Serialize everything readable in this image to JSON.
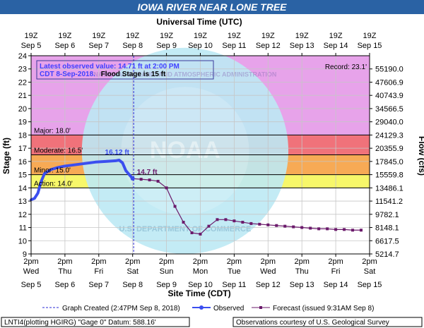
{
  "title": "IOWA RIVER NEAR LONE TREE",
  "colors": {
    "title_bar": "#2a62a4",
    "record": "#e7a3ea",
    "major": "#c987e0",
    "moderate": "#f0727a",
    "minor": "#f7aa55",
    "action": "#f7f76a",
    "observed": "#3b4eef",
    "forecast": "#6b1a6b",
    "noaa_disc": "#bde9f4"
  },
  "top_axis": {
    "title": "Universal Time (UTC)",
    "hours": [
      "19Z",
      "19Z",
      "19Z",
      "19Z",
      "19Z",
      "19Z",
      "19Z",
      "19Z",
      "19Z",
      "19Z",
      "19Z"
    ],
    "dates": [
      "Sep 5",
      "Sep 6",
      "Sep 7",
      "Sep 8",
      "Sep 9",
      "Sep 10",
      "Sep 11",
      "Sep 12",
      "Sep 13",
      "Sep 14",
      "Sep 15"
    ]
  },
  "bottom_axis": {
    "title": "Site Time (CDT)",
    "times": [
      "2pm",
      "2pm",
      "2pm",
      "2pm",
      "2pm",
      "2pm",
      "2pm",
      "2pm",
      "2pm",
      "2pm",
      "2pm"
    ],
    "days": [
      "Wed",
      "Thu",
      "Fri",
      "Sat",
      "Sun",
      "Mon",
      "Tue",
      "Wed",
      "Thu",
      "Fri",
      "Sat"
    ],
    "dates": [
      "Sep 5",
      "Sep 6",
      "Sep 7",
      "Sep 8",
      "Sep 9",
      "Sep 10",
      "Sep 11",
      "Sep 12",
      "Sep 13",
      "Sep 14",
      "Sep 15"
    ]
  },
  "left_axis_title": "Stage (ft)",
  "right_axis_title": "Flow (cfs)",
  "info_box": {
    "line1": "Latest observed value: 14.71 ft at 2:00 PM",
    "line2_blue": "CDT 8-Sep-2018.",
    "line2_black": "Flood Stage is 15 ft"
  },
  "flood_labels": {
    "record": "Record: 23.1'",
    "major": "Major: 18.0'",
    "moderate": "Moderate: 16.5'",
    "minor": "Minor: 15.0'",
    "action": "Action: 14.0'"
  },
  "annotations": {
    "peak": "16.12 ft",
    "latest": "14.7 ft"
  },
  "legend": {
    "graph_created": "Graph Created (2:47PM Sep 8, 2018)",
    "observed": "Observed",
    "forecast": "Forecast (issued 9:31AM Sep 8)"
  },
  "footer": {
    "left": "LNTI4(plotting HGIRG) \"Gage 0\" Datum: 588.16'",
    "right": "Observations courtesy of U.S. Geological Survey"
  },
  "watermark": {
    "noaa": "NOAA",
    "ring_text": "NATIONAL OCEANIC AND ATMOSPHERIC ADMINISTRATION",
    "dept_text": "U.S. DEPARTMENT OF COMMERCE"
  },
  "chart_data": {
    "type": "line",
    "title": "IOWA RIVER NEAR LONE TREE",
    "xlabel": "Site Time (CDT)",
    "ylabel": "Stage (ft)",
    "y2label": "Flow (cfs)",
    "x_unit": "days after Wed Sep 5 2:00 PM CDT",
    "xlim": [
      0,
      10
    ],
    "ylim": [
      9,
      24
    ],
    "y_ticks": [
      9,
      10,
      11,
      12,
      13,
      14,
      15,
      16,
      17,
      18,
      19,
      20,
      21,
      22,
      23,
      24
    ],
    "flow_ticks": [
      {
        "stage": 10,
        "label": "6617.5"
      },
      {
        "stage": 11,
        "label": "8148.1"
      },
      {
        "stage": 12,
        "label": "9782.1"
      },
      {
        "stage": 13,
        "label": "11541.2"
      },
      {
        "stage": 14,
        "label": "13486.1"
      },
      {
        "stage": 15,
        "label": "15559.8"
      },
      {
        "stage": 16,
        "label": "17845.0"
      },
      {
        "stage": 17,
        "label": "20355.9"
      },
      {
        "stage": 18,
        "label": "24129.3"
      },
      {
        "stage": 19,
        "label": "29040.0"
      },
      {
        "stage": 20,
        "label": "34566.5"
      },
      {
        "stage": 21,
        "label": "40743.9"
      },
      {
        "stage": 22,
        "label": "47606.9"
      },
      {
        "stage": 23,
        "label": "55190.0"
      },
      {
        "stage": 9,
        "label": "5214.7"
      }
    ],
    "flood_categories": [
      {
        "name": "Record",
        "stage": 23.1
      },
      {
        "name": "Major",
        "stage": 18.0
      },
      {
        "name": "Moderate",
        "stage": 16.5
      },
      {
        "name": "Minor",
        "stage": 15.0
      },
      {
        "name": "Action",
        "stage": 14.0
      }
    ],
    "graph_created_x": 3.03,
    "series": [
      {
        "name": "Observed",
        "points": [
          [
            0.0,
            13.1
          ],
          [
            0.1,
            13.2
          ],
          [
            0.2,
            13.6
          ],
          [
            0.3,
            14.5
          ],
          [
            0.4,
            15.1
          ],
          [
            0.6,
            15.4
          ],
          [
            0.8,
            15.55
          ],
          [
            1.0,
            15.65
          ],
          [
            1.3,
            15.75
          ],
          [
            1.6,
            15.85
          ],
          [
            1.9,
            15.95
          ],
          [
            2.2,
            16.0
          ],
          [
            2.5,
            16.05
          ],
          [
            2.6,
            16.1
          ],
          [
            2.7,
            15.9
          ],
          [
            2.8,
            15.3
          ],
          [
            2.9,
            15.0
          ],
          [
            3.0,
            14.71
          ]
        ]
      },
      {
        "name": "Forecast",
        "points": [
          [
            3.0,
            14.7
          ],
          [
            3.25,
            14.65
          ],
          [
            3.5,
            14.6
          ],
          [
            3.75,
            14.5
          ],
          [
            4.0,
            14.0
          ],
          [
            4.25,
            12.6
          ],
          [
            4.5,
            11.4
          ],
          [
            4.75,
            10.6
          ],
          [
            5.0,
            10.5
          ],
          [
            5.25,
            11.1
          ],
          [
            5.5,
            11.6
          ],
          [
            5.75,
            11.6
          ],
          [
            6.0,
            11.5
          ],
          [
            6.25,
            11.4
          ],
          [
            6.5,
            11.3
          ],
          [
            6.75,
            11.25
          ],
          [
            7.0,
            11.2
          ],
          [
            7.25,
            11.15
          ],
          [
            7.5,
            11.1
          ],
          [
            7.75,
            11.05
          ],
          [
            8.0,
            11.0
          ],
          [
            8.25,
            10.95
          ],
          [
            8.5,
            10.9
          ],
          [
            8.75,
            10.9
          ],
          [
            9.0,
            10.85
          ],
          [
            9.25,
            10.85
          ],
          [
            9.5,
            10.8
          ],
          [
            9.75,
            10.8
          ]
        ]
      }
    ]
  }
}
